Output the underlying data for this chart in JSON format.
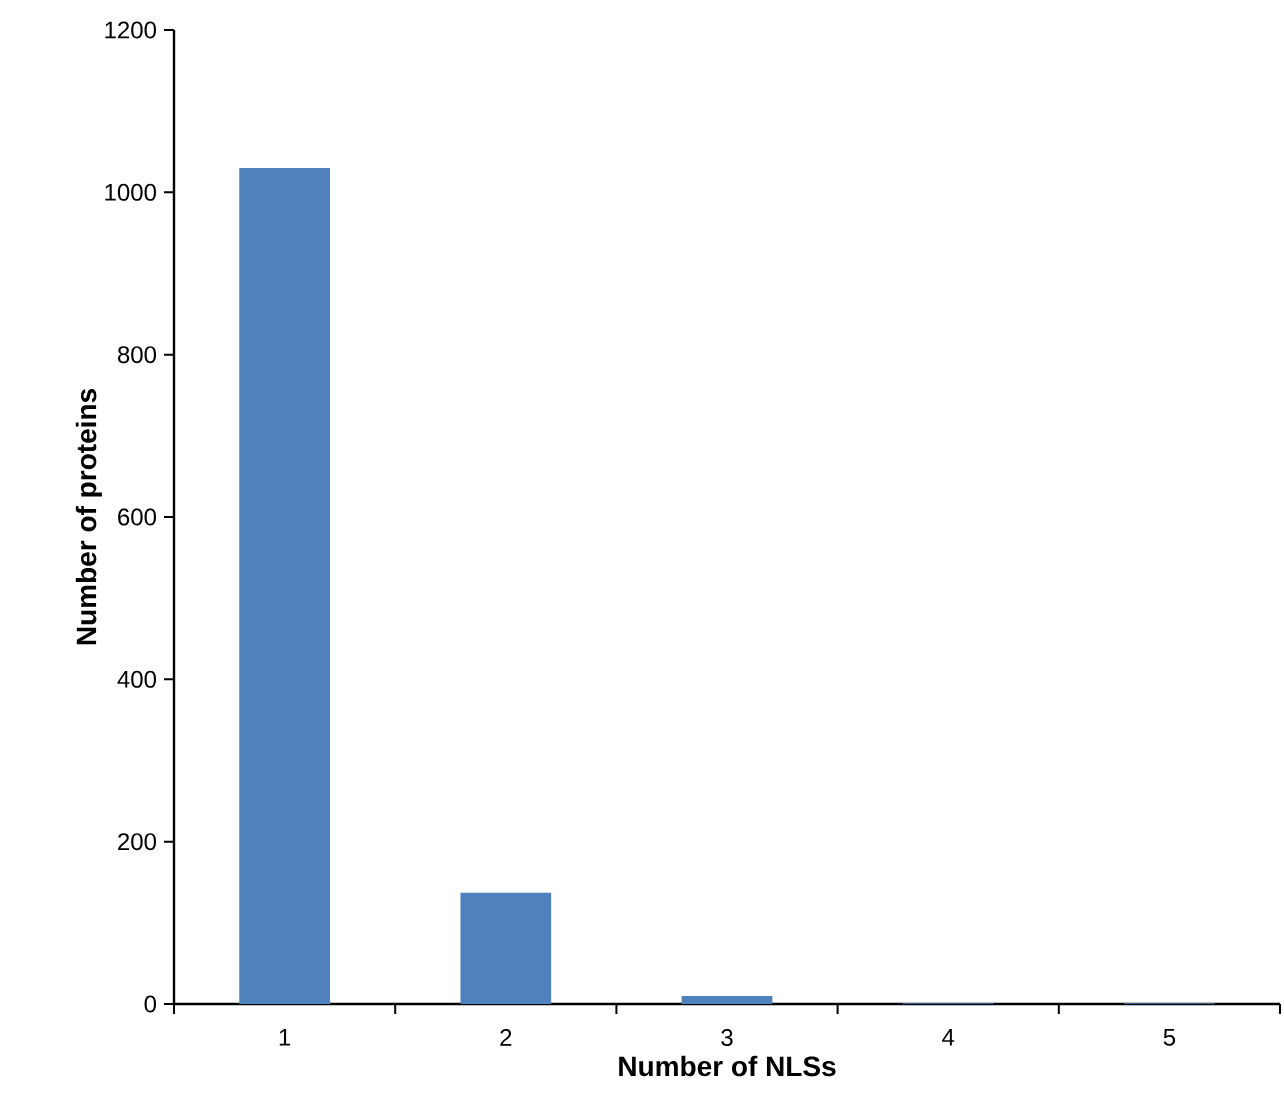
{
  "chart_data": {
    "type": "bar",
    "xlabel": "Number of NLSs",
    "ylabel": "Number of proteins",
    "categories": [
      "1",
      "2",
      "3",
      "4",
      "5"
    ],
    "values": [
      1030,
      137,
      10,
      1,
      1
    ],
    "color": "#4f81bd",
    "ylim": [
      0,
      1200
    ],
    "yticks": [
      0,
      200,
      400,
      600,
      800,
      1000,
      1200
    ],
    "grid": false
  }
}
